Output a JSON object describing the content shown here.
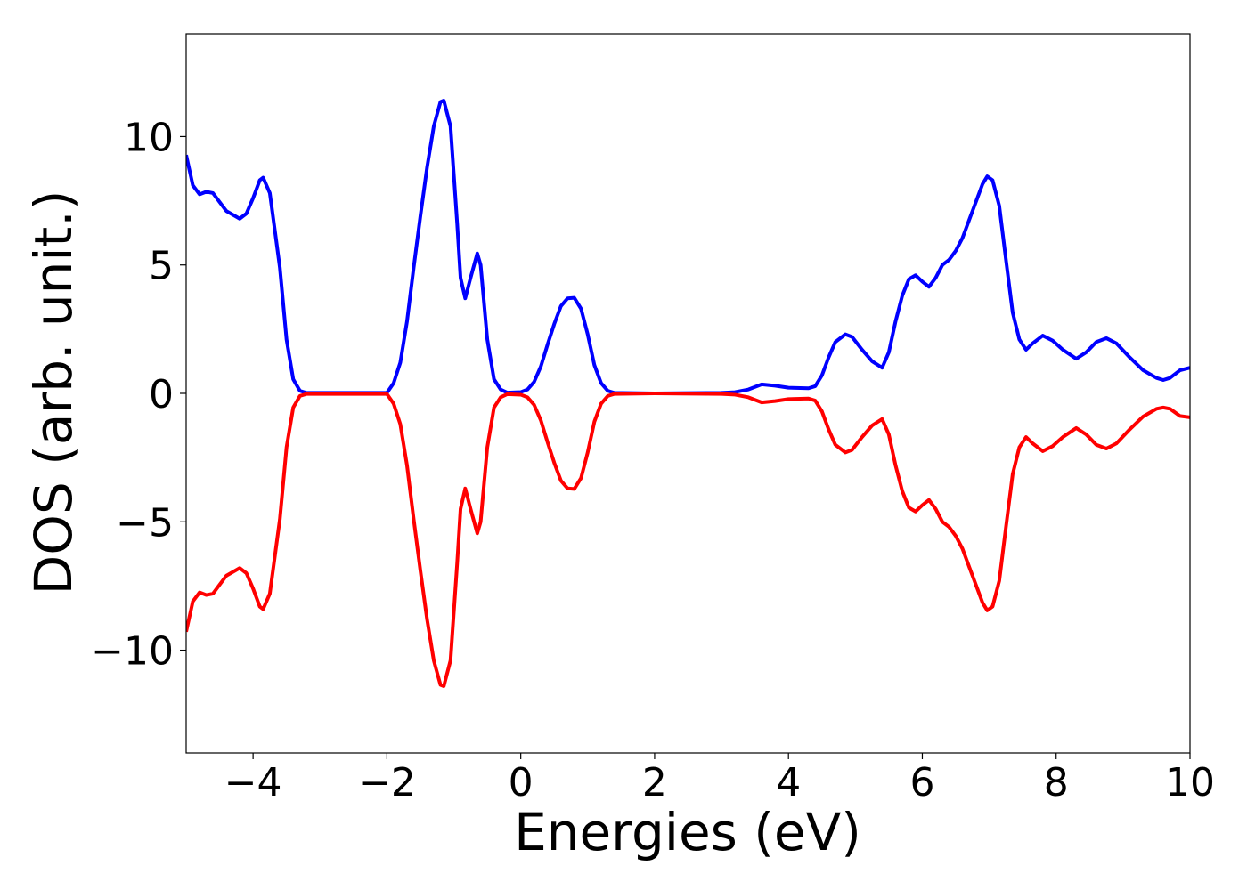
{
  "chart_data": {
    "type": "line",
    "xlabel": "Energies (eV)",
    "ylabel": "DOS (arb. unit.)",
    "xlim": [
      -5,
      10
    ],
    "ylim": [
      -14,
      14
    ],
    "xticks": [
      {
        "value": -4,
        "label": "−4"
      },
      {
        "value": -2,
        "label": "−2"
      },
      0,
      2,
      4,
      6,
      8,
      10
    ],
    "yticks": [
      {
        "value": -10,
        "label": "−10"
      },
      {
        "value": -5,
        "label": "−5"
      },
      0,
      5,
      10
    ],
    "x": [
      -5,
      -4.9,
      -4.8,
      -4.7,
      -4.6,
      -4.5,
      -4.4,
      -4.2,
      -4.1,
      -4,
      -3.9,
      -3.85,
      -3.75,
      -3.6,
      -3.5,
      -3.4,
      -3.3,
      -3.2,
      -2,
      -1.9,
      -1.8,
      -1.7,
      -1.6,
      -1.5,
      -1.4,
      -1.3,
      -1.2,
      -1.15,
      -1.05,
      -0.95,
      -0.9,
      -0.83,
      -0.75,
      -0.65,
      -0.6,
      -0.5,
      -0.4,
      -0.3,
      -0.2,
      0,
      0.1,
      0.2,
      0.3,
      0.4,
      0.5,
      0.6,
      0.7,
      0.8,
      0.9,
      1,
      1.1,
      1.2,
      1.3,
      1.4,
      2,
      3,
      3.2,
      3.4,
      3.6,
      3.8,
      4,
      4.3,
      4.4,
      4.5,
      4.6,
      4.7,
      4.85,
      4.95,
      5.1,
      5.25,
      5.4,
      5.5,
      5.6,
      5.7,
      5.8,
      5.9,
      6,
      6.1,
      6.2,
      6.3,
      6.4,
      6.5,
      6.6,
      6.7,
      6.8,
      6.9,
      6.97,
      7.05,
      7.15,
      7.25,
      7.35,
      7.45,
      7.55,
      7.65,
      7.8,
      7.95,
      8.1,
      8.3,
      8.45,
      8.6,
      8.75,
      8.9,
      9.1,
      9.3,
      9.5,
      9.6,
      9.7,
      9.85,
      10
    ],
    "series": [
      {
        "color": "#0000ff",
        "values": [
          9.28,
          8.1,
          7.75,
          7.85,
          7.8,
          7.45,
          7.1,
          6.8,
          7.0,
          7.6,
          8.3,
          8.4,
          7.8,
          4.9,
          2.1,
          0.55,
          0.1,
          0.02,
          0.02,
          0.4,
          1.2,
          2.8,
          4.9,
          6.9,
          8.8,
          10.4,
          11.35,
          11.4,
          10.4,
          6.6,
          4.5,
          3.7,
          4.5,
          5.45,
          5.0,
          2.1,
          0.55,
          0.15,
          0.03,
          0.05,
          0.15,
          0.45,
          1.05,
          1.9,
          2.7,
          3.4,
          3.7,
          3.72,
          3.3,
          2.3,
          1.1,
          0.4,
          0.1,
          0.02,
          0,
          0.02,
          0.05,
          0.15,
          0.35,
          0.3,
          0.22,
          0.2,
          0.28,
          0.7,
          1.4,
          2.0,
          2.3,
          2.2,
          1.7,
          1.25,
          1.0,
          1.6,
          2.8,
          3.8,
          4.45,
          4.6,
          4.35,
          4.15,
          4.5,
          5.0,
          5.2,
          5.55,
          6.05,
          6.75,
          7.45,
          8.15,
          8.45,
          8.3,
          7.3,
          5.2,
          3.15,
          2.1,
          1.7,
          1.95,
          2.25,
          2.05,
          1.7,
          1.35,
          1.6,
          2.0,
          2.15,
          1.95,
          1.4,
          0.9,
          0.6,
          0.52,
          0.6,
          0.9,
          1.0
        ]
      },
      {
        "color": "#ff0000",
        "values": [
          -9.28,
          -8.1,
          -7.75,
          -7.85,
          -7.8,
          -7.45,
          -7.1,
          -6.8,
          -7.0,
          -7.6,
          -8.3,
          -8.4,
          -7.8,
          -4.9,
          -2.1,
          -0.55,
          -0.1,
          -0.02,
          -0.02,
          -0.4,
          -1.2,
          -2.8,
          -4.9,
          -6.9,
          -8.8,
          -10.4,
          -11.35,
          -11.4,
          -10.4,
          -6.6,
          -4.5,
          -3.7,
          -4.5,
          -5.45,
          -5.0,
          -2.1,
          -0.55,
          -0.15,
          -0.03,
          -0.05,
          -0.15,
          -0.45,
          -1.05,
          -1.9,
          -2.7,
          -3.4,
          -3.7,
          -3.72,
          -3.3,
          -2.3,
          -1.1,
          -0.4,
          -0.1,
          -0.02,
          0,
          -0.02,
          -0.05,
          -0.15,
          -0.35,
          -0.3,
          -0.22,
          -0.2,
          -0.28,
          -0.7,
          -1.4,
          -2.0,
          -2.3,
          -2.2,
          -1.7,
          -1.25,
          -1.0,
          -1.6,
          -2.8,
          -3.8,
          -4.45,
          -4.6,
          -4.35,
          -4.15,
          -4.5,
          -5.0,
          -5.2,
          -5.55,
          -6.05,
          -6.75,
          -7.45,
          -8.15,
          -8.45,
          -8.3,
          -7.3,
          -5.2,
          -3.15,
          -2.1,
          -1.7,
          -1.95,
          -2.25,
          -2.05,
          -1.7,
          -1.35,
          -1.6,
          -2.0,
          -2.15,
          -1.95,
          -1.4,
          -0.9,
          -0.6,
          -0.55,
          -0.6,
          -0.88,
          -0.93
        ]
      }
    ]
  }
}
